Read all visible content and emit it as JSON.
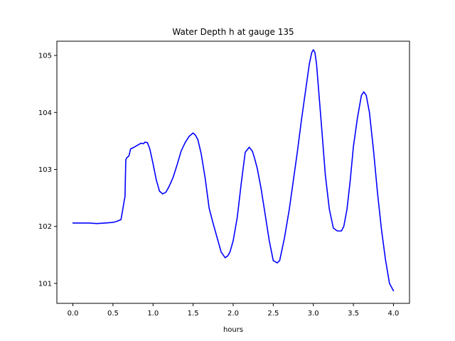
{
  "chart_data": {
    "type": "line",
    "title": "Water Depth h at gauge 135",
    "xlabel": "hours",
    "ylabel": "",
    "xlim": [
      -0.2,
      4.2
    ],
    "ylim": [
      100.65,
      105.25
    ],
    "xticks": [
      0.0,
      0.5,
      1.0,
      1.5,
      2.0,
      2.5,
      3.0,
      3.5,
      4.0
    ],
    "xtick_labels": [
      "0.0",
      "0.5",
      "1.0",
      "1.5",
      "2.0",
      "2.5",
      "3.0",
      "3.5",
      "4.0"
    ],
    "yticks": [
      101,
      102,
      103,
      104,
      105
    ],
    "ytick_labels": [
      "101",
      "102",
      "103",
      "104",
      "105"
    ],
    "grid": false,
    "series": [
      {
        "color": "#0000ff",
        "x": [
          0.0,
          0.1,
          0.2,
          0.3,
          0.4,
          0.5,
          0.55,
          0.6,
          0.62,
          0.64,
          0.65,
          0.66,
          0.67,
          0.7,
          0.72,
          0.75,
          0.8,
          0.85,
          0.88,
          0.9,
          0.93,
          0.96,
          1.0,
          1.04,
          1.08,
          1.12,
          1.16,
          1.2,
          1.25,
          1.3,
          1.35,
          1.4,
          1.45,
          1.5,
          1.53,
          1.56,
          1.6,
          1.65,
          1.7,
          1.75,
          1.8,
          1.85,
          1.9,
          1.93,
          1.96,
          2.0,
          2.05,
          2.1,
          2.15,
          2.2,
          2.24,
          2.27,
          2.3,
          2.35,
          2.4,
          2.45,
          2.5,
          2.55,
          2.58,
          2.61,
          2.64,
          2.7,
          2.75,
          2.8,
          2.85,
          2.9,
          2.95,
          2.98,
          3.0,
          3.02,
          3.04,
          3.06,
          3.1,
          3.15,
          3.2,
          3.25,
          3.3,
          3.35,
          3.38,
          3.42,
          3.46,
          3.5,
          3.55,
          3.6,
          3.63,
          3.66,
          3.7,
          3.75,
          3.8,
          3.85,
          3.9,
          3.95,
          4.0
        ],
        "y": [
          102.06,
          102.06,
          102.06,
          102.05,
          102.06,
          102.07,
          102.09,
          102.12,
          102.28,
          102.45,
          102.52,
          103.17,
          103.2,
          103.24,
          103.36,
          103.38,
          103.42,
          103.46,
          103.45,
          103.48,
          103.47,
          103.36,
          103.1,
          102.82,
          102.62,
          102.57,
          102.6,
          102.7,
          102.86,
          103.08,
          103.32,
          103.47,
          103.58,
          103.64,
          103.6,
          103.52,
          103.28,
          102.85,
          102.32,
          102.05,
          101.8,
          101.55,
          101.45,
          101.48,
          101.55,
          101.75,
          102.15,
          102.75,
          103.3,
          103.39,
          103.32,
          103.18,
          103.02,
          102.65,
          102.2,
          101.75,
          101.4,
          101.36,
          101.4,
          101.6,
          101.8,
          102.3,
          102.8,
          103.3,
          103.85,
          104.35,
          104.85,
          105.05,
          105.1,
          105.05,
          104.85,
          104.5,
          103.8,
          102.9,
          102.3,
          101.97,
          101.92,
          101.92,
          102.0,
          102.3,
          102.8,
          103.4,
          103.9,
          104.3,
          104.36,
          104.3,
          104.0,
          103.35,
          102.6,
          101.95,
          101.42,
          101.0,
          100.87
        ]
      }
    ]
  }
}
